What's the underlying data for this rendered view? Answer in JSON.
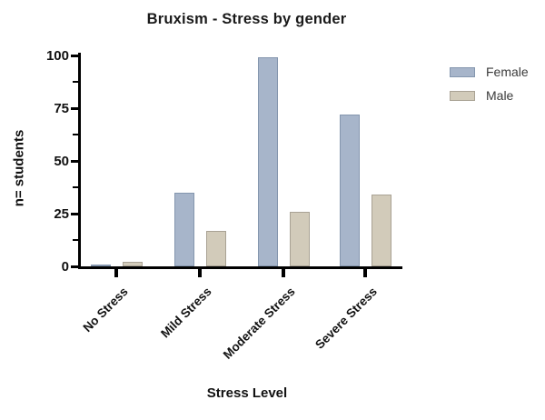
{
  "chart_data": {
    "type": "bar",
    "title": "Bruxism - Stress by gender",
    "xlabel": "Stress Level",
    "ylabel": "n= students",
    "categories": [
      "No Stress",
      "Mild Stress",
      "Moderate Stress",
      "Severe Stress"
    ],
    "series": [
      {
        "name": "Female",
        "fill": "#A7B5CA",
        "border": "#8496AE",
        "values": [
          1,
          35,
          99,
          72
        ]
      },
      {
        "name": "Male",
        "fill": "#D2CBBA",
        "border": "#A9A294",
        "values": [
          2,
          17,
          26,
          34
        ]
      }
    ],
    "ylim": [
      0,
      100
    ],
    "yticks": [
      0,
      25,
      50,
      75,
      100
    ],
    "yticks_minor": [
      12.5,
      37.5,
      62.5,
      87.5
    ],
    "grid": false,
    "legend_position": "top-right",
    "colors": {
      "axis": "#000000",
      "text": "#111111",
      "legend_text": "#3b3b3b",
      "background": "#ffffff"
    }
  }
}
